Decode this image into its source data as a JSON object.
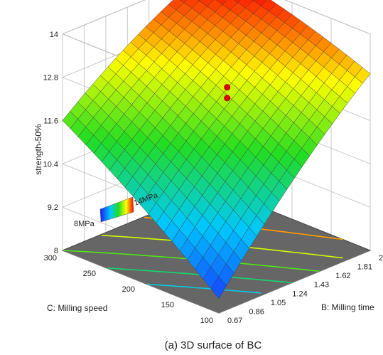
{
  "figure": {
    "caption": "(a) 3D surface of BC"
  },
  "chart_data": {
    "type": "surface3d",
    "title": "",
    "zlabel": "strength-50%",
    "xlabel": "B: Milling time",
    "ylabel": "C: Milling speed",
    "x_ticks": [
      "0.67",
      "0.86",
      "1.05",
      "1.24",
      "1.43",
      "1.62",
      "1.81",
      "2"
    ],
    "y_ticks": [
      "100",
      "150",
      "200",
      "250",
      "300"
    ],
    "z_ticks": [
      "8",
      "9.2",
      "10.4",
      "11.6",
      "12.8",
      "14"
    ],
    "xlim": [
      0.67,
      2
    ],
    "ylim": [
      100,
      300
    ],
    "zlim": [
      8,
      14
    ],
    "color_scale": {
      "min_label": "8MPa",
      "max_label": "14MPa",
      "colors": [
        "#1a1aff",
        "#00c8ff",
        "#22dd22",
        "#ffff00",
        "#ff0000"
      ]
    },
    "grid_resolution": 20,
    "surface_corner_values": {
      "time_min_speed_min": 8.4,
      "time_max_speed_min": 12.9,
      "time_min_speed_max": 11.6,
      "time_max_speed_max": 14.2
    },
    "design_points": [
      {
        "time": 1.43,
        "speed": 200,
        "strength": 12.1
      },
      {
        "time": 1.43,
        "speed": 200,
        "strength": 12.4
      }
    ],
    "contour_levels": [
      10.0,
      10.8,
      11.6,
      12.4,
      13.2
    ]
  }
}
